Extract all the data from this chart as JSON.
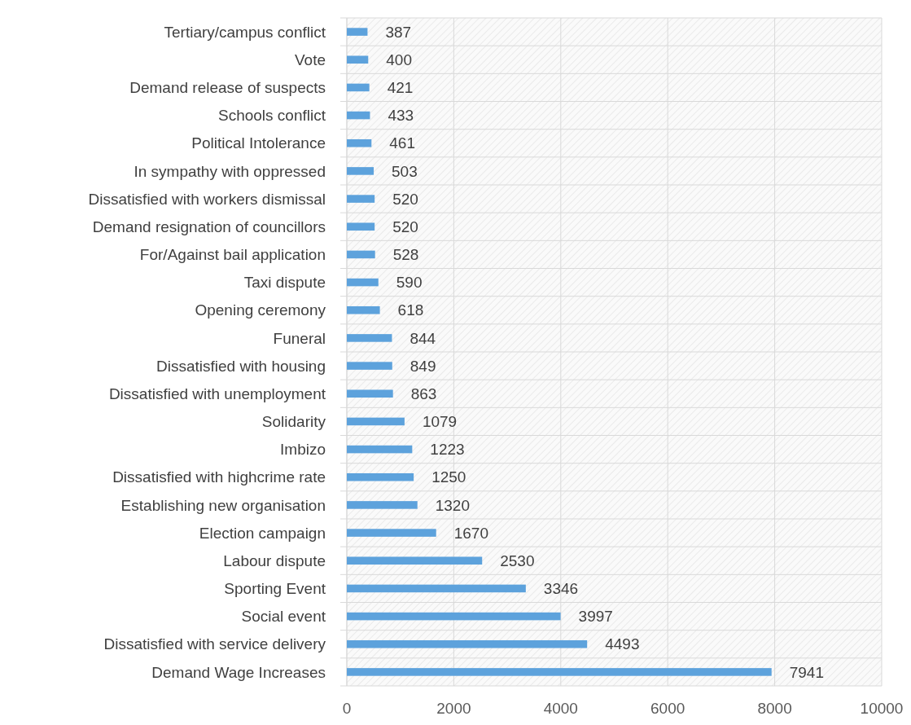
{
  "chart_data": {
    "type": "bar",
    "orientation": "horizontal",
    "categories": [
      "Tertiary/campus conflict",
      "Vote",
      "Demand release of suspects",
      "Schools conflict",
      "Political Intolerance",
      "In sympathy with oppressed",
      "Dissatisfied with workers dismissal",
      "Demand resignation of councillors",
      "For/Against bail application",
      "Taxi dispute",
      "Opening ceremony",
      "Funeral",
      "Dissatisfied with housing",
      "Dissatisfied with unemployment",
      "Solidarity",
      "Imbizo",
      "Dissatisfied with highcrime rate",
      "Establishing new organisation",
      "Election campaign",
      "Labour dispute",
      "Sporting Event",
      "Social event",
      "Dissatisfied with service delivery",
      "Demand Wage Increases"
    ],
    "values": [
      387,
      400,
      421,
      433,
      461,
      503,
      520,
      520,
      528,
      590,
      618,
      844,
      849,
      863,
      1079,
      1223,
      1250,
      1320,
      1670,
      2530,
      3346,
      3997,
      4493,
      7941
    ],
    "color": "#5da2dc",
    "xlim": [
      0,
      10000
    ],
    "xticks": [
      0,
      2000,
      4000,
      6000,
      8000,
      10000
    ],
    "grid": true,
    "data_labels": true
  }
}
